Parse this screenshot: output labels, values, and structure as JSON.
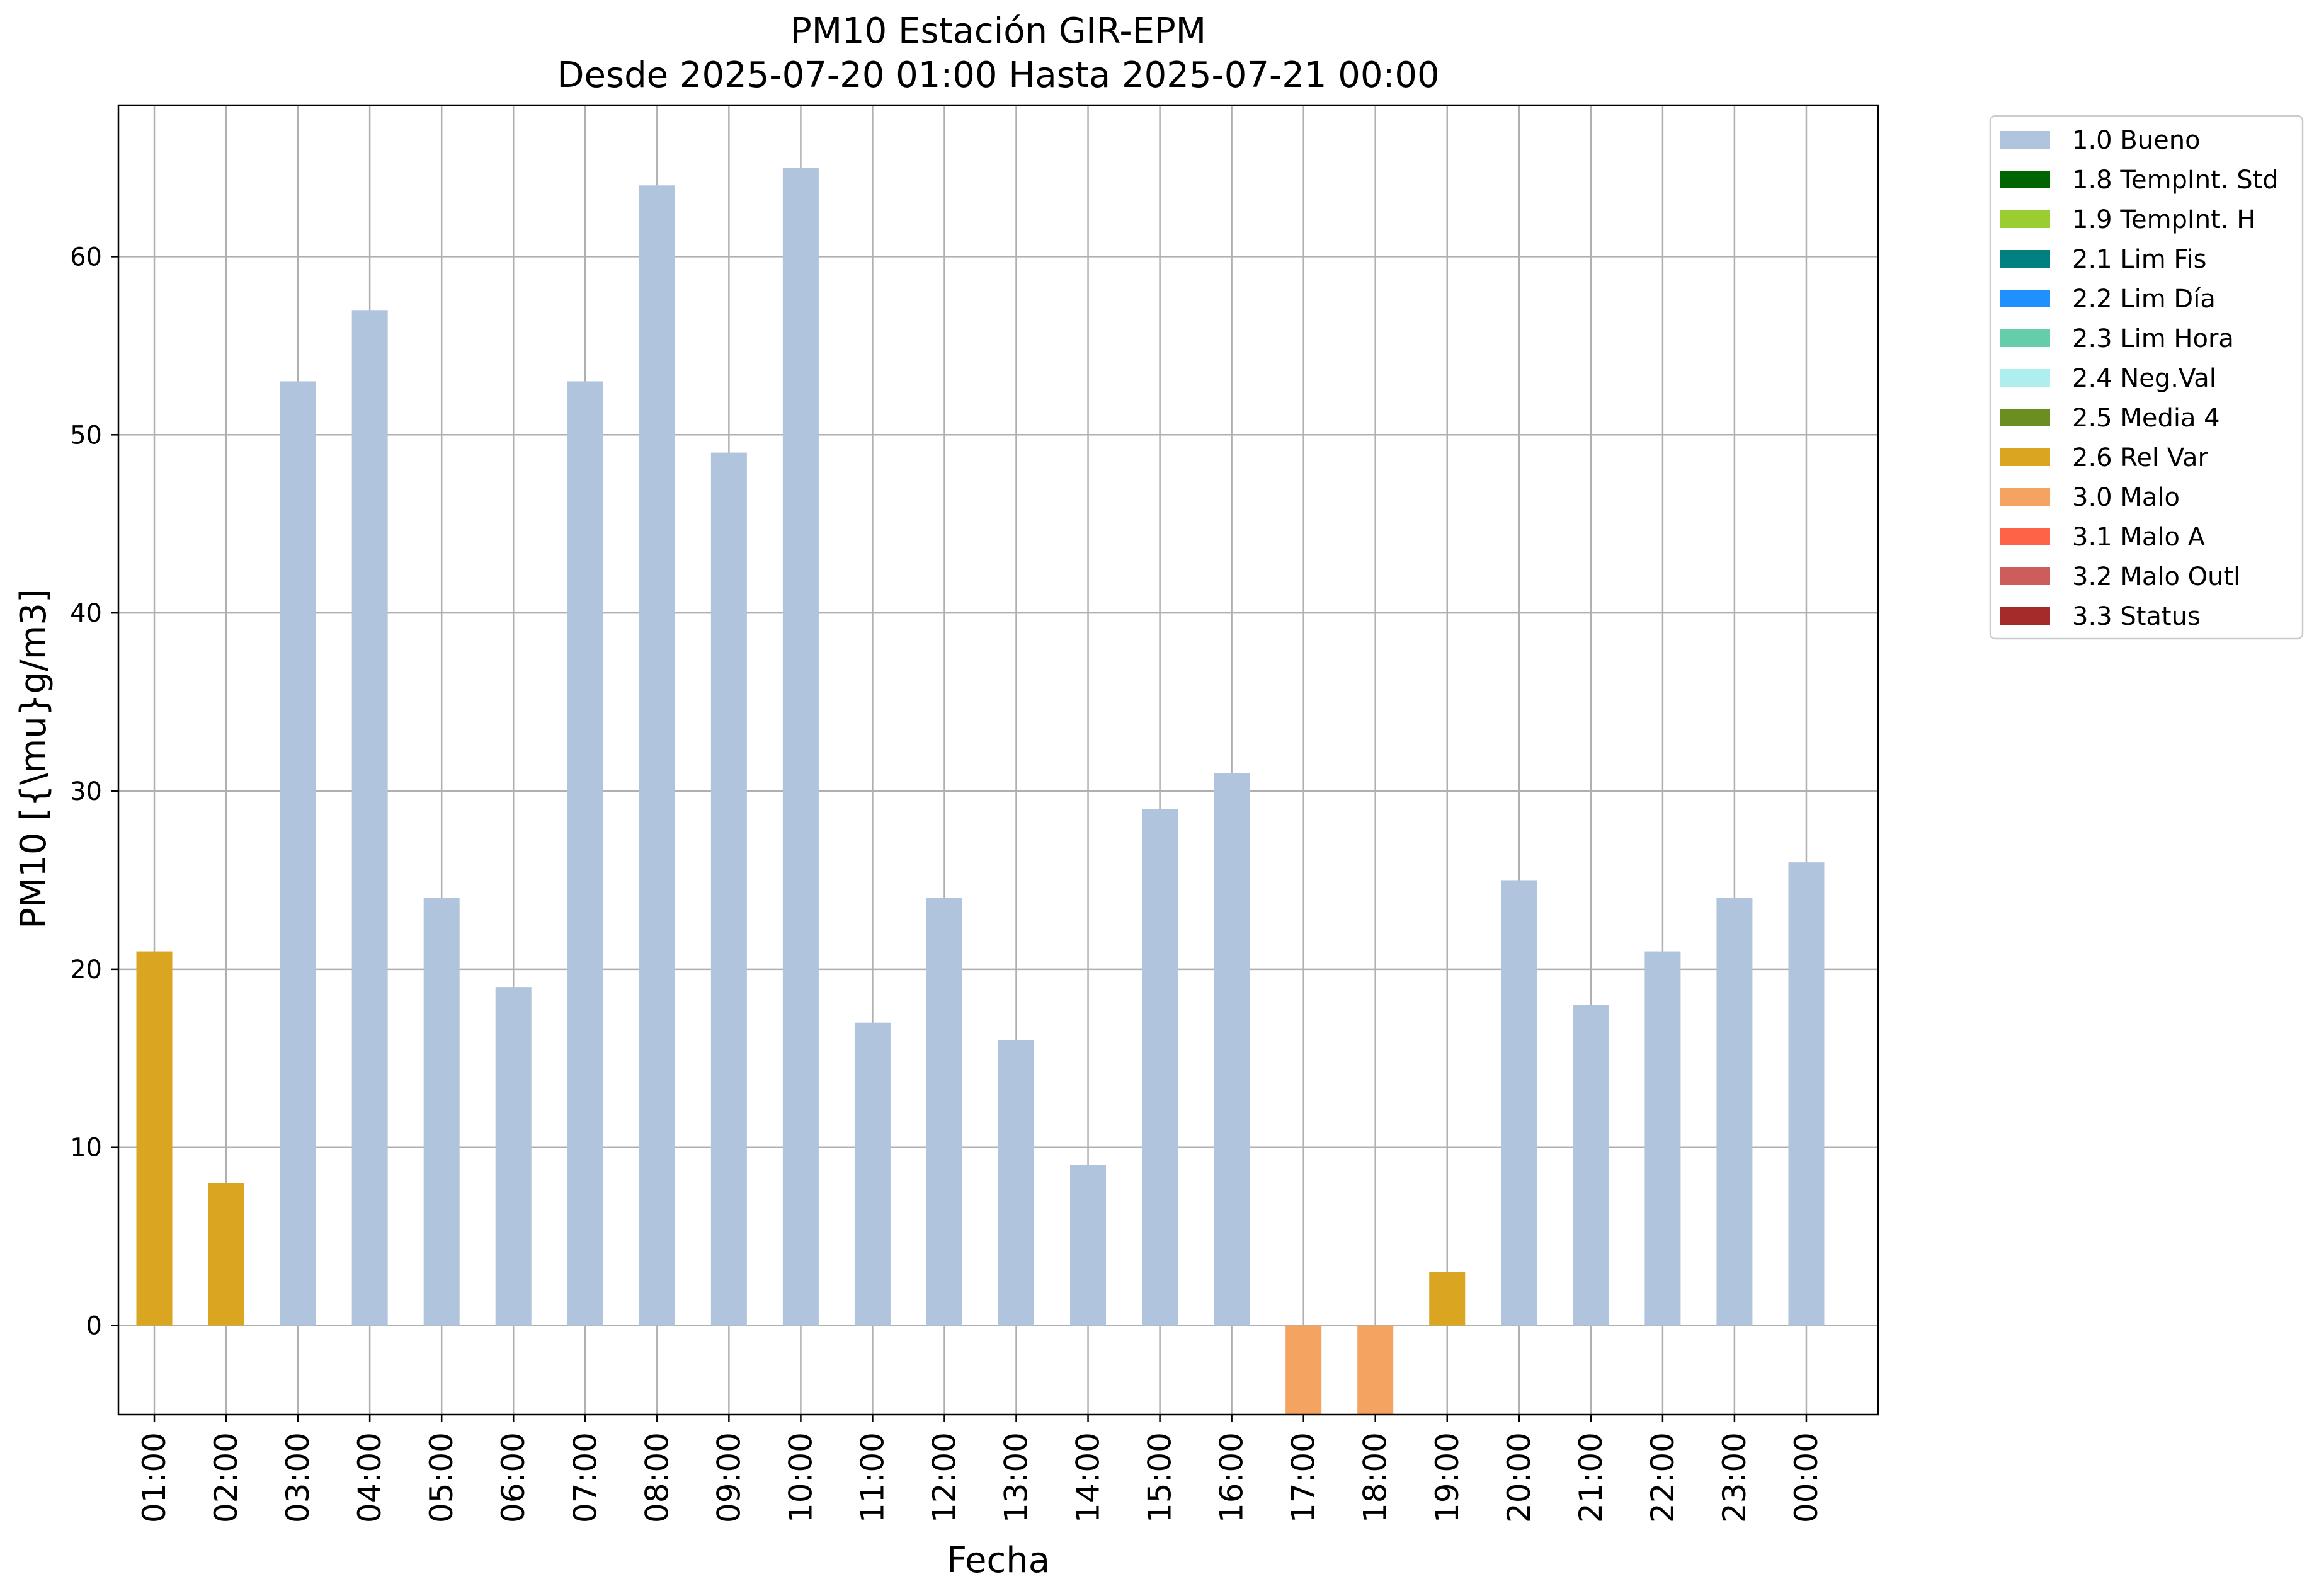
{
  "chart_data": {
    "type": "bar",
    "title": "PM10 Estación GIR-EPM",
    "subtitle": "Desde 2025-07-20 01:00 Hasta 2025-07-21 00:00",
    "xlabel": "Fecha",
    "ylabel": "PM10 [{\\mu}g/m3]",
    "ylim": [
      -5,
      68.5
    ],
    "yticks": [
      0,
      10,
      20,
      30,
      40,
      50,
      60
    ],
    "grid": true,
    "legend_position": "outside right, top",
    "categories": [
      "01:00",
      "02:00",
      "03:00",
      "04:00",
      "05:00",
      "06:00",
      "07:00",
      "08:00",
      "09:00",
      "10:00",
      "11:00",
      "12:00",
      "13:00",
      "14:00",
      "15:00",
      "16:00",
      "17:00",
      "18:00",
      "19:00",
      "20:00",
      "21:00",
      "22:00",
      "23:00",
      "00:00"
    ],
    "values": [
      21,
      8,
      53,
      57,
      24,
      19,
      53,
      64,
      49,
      65,
      17,
      24,
      16,
      9,
      29,
      31,
      -5,
      -5,
      3,
      25,
      18,
      21,
      24,
      26
    ],
    "flags": [
      "2.6 Rel Var",
      "2.6 Rel Var",
      "1.0 Bueno",
      "1.0 Bueno",
      "1.0 Bueno",
      "1.0 Bueno",
      "1.0 Bueno",
      "1.0 Bueno",
      "1.0 Bueno",
      "1.0 Bueno",
      "1.0 Bueno",
      "1.0 Bueno",
      "1.0 Bueno",
      "1.0 Bueno",
      "1.0 Bueno",
      "1.0 Bueno",
      "3.0 Malo",
      "3.0 Malo",
      "2.6 Rel Var",
      "1.0 Bueno",
      "1.0 Bueno",
      "1.0 Bueno",
      "1.0 Bueno",
      "1.0 Bueno"
    ],
    "legend": [
      {
        "label": "1.0 Bueno",
        "color": "#b0c4de"
      },
      {
        "label": "1.8 TempInt. Std",
        "color": "#006400"
      },
      {
        "label": "1.9 TempInt. H",
        "color": "#9acd32"
      },
      {
        "label": "2.1 Lim Fis",
        "color": "#008080"
      },
      {
        "label": "2.2 Lim Día",
        "color": "#1e90ff"
      },
      {
        "label": "2.3 Lim Hora",
        "color": "#66cdaa"
      },
      {
        "label": "2.4 Neg.Val",
        "color": "#afeeee"
      },
      {
        "label": "2.5 Media 4",
        "color": "#6b8e23"
      },
      {
        "label": "2.6 Rel Var",
        "color": "#daa520"
      },
      {
        "label": "3.0 Malo",
        "color": "#f4a460"
      },
      {
        "label": "3.1 Malo A",
        "color": "#ff6347"
      },
      {
        "label": "3.2 Malo Outl",
        "color": "#cd5c5c"
      },
      {
        "label": "3.3 Status",
        "color": "#a52a2a"
      }
    ]
  }
}
